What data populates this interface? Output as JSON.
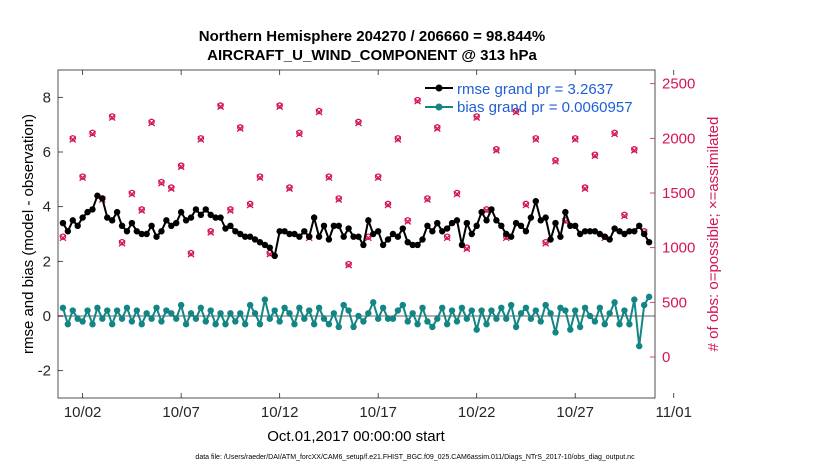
{
  "chart_data": {
    "type": "line",
    "title": "Northern Hemisphere 204270 / 206660 = 98.844%",
    "subtitle": "AIRCRAFT_U_WIND_COMPONENT @ 313 hPa",
    "xlabel": "Oct.01,2017 00:00:00 start",
    "ylabel": "rmse and bias (model - observation)",
    "y2label": "# of obs: o=possible; ×=assimilated",
    "footnote": "data file: /Users/raeder/DAI/ATM_forcXX/CAM6_setup/f.e21.FHIST_BGC.f09_025.CAM6assim.011/Diags_NTrS_2017-10/obs_diag_output.nc",
    "xlim": [
      0.75,
      31.05
    ],
    "ylim": [
      -3,
      9
    ],
    "y2lim": [
      -375,
      2625
    ],
    "x_tick_values": [
      2,
      7,
      12,
      17,
      22,
      27,
      32
    ],
    "x_tick_labels": [
      "10/02",
      "10/07",
      "10/12",
      "10/17",
      "10/22",
      "10/27",
      "11/01"
    ],
    "y_ticks": [
      -2,
      0,
      2,
      4,
      6,
      8
    ],
    "y2_ticks": [
      0,
      500,
      1000,
      1500,
      2000,
      2500
    ],
    "zero_line": 0,
    "legend": {
      "location": "top-right",
      "entries": [
        "rmse grand pr = 3.2637",
        "bias grand pr = 0.0060957"
      ]
    },
    "colors": {
      "rmse": "#000000",
      "bias": "#138585",
      "obs": "#d4145a",
      "zero": "#b0b0b0"
    },
    "series": [
      {
        "name": "rmse",
        "x": [
          1.0,
          1.25,
          1.5,
          1.75,
          2.0,
          2.25,
          2.5,
          2.75,
          3.0,
          3.25,
          3.5,
          3.75,
          4.0,
          4.25,
          4.5,
          4.75,
          5.0,
          5.25,
          5.5,
          5.75,
          6.0,
          6.25,
          6.5,
          6.75,
          7.0,
          7.25,
          7.5,
          7.75,
          8.0,
          8.25,
          8.5,
          8.75,
          9.0,
          9.25,
          9.5,
          9.75,
          10.0,
          10.25,
          10.5,
          10.75,
          11.0,
          11.25,
          11.5,
          11.75,
          12.0,
          12.25,
          12.5,
          12.75,
          13.0,
          13.25,
          13.5,
          13.75,
          14.0,
          14.25,
          14.5,
          14.75,
          15.0,
          15.25,
          15.5,
          15.75,
          16.0,
          16.25,
          16.5,
          16.75,
          17.0,
          17.25,
          17.5,
          17.75,
          18.0,
          18.25,
          18.5,
          18.75,
          19.0,
          19.25,
          19.5,
          19.75,
          20.0,
          20.25,
          20.5,
          20.75,
          21.0,
          21.25,
          21.5,
          21.75,
          22.0,
          22.25,
          22.5,
          22.75,
          23.0,
          23.25,
          23.5,
          23.75,
          24.0,
          24.25,
          24.5,
          24.75,
          25.0,
          25.25,
          25.5,
          25.75,
          26.0,
          26.25,
          26.5,
          26.75,
          27.0,
          27.25,
          27.5,
          27.75,
          28.0,
          28.25,
          28.5,
          28.75,
          29.0,
          29.25,
          29.5,
          29.75,
          30.0,
          30.25,
          30.5,
          30.75
        ],
        "values": [
          3.4,
          3.1,
          3.5,
          3.3,
          3.6,
          3.8,
          3.9,
          4.4,
          4.3,
          3.6,
          3.5,
          3.8,
          3.3,
          3.1,
          3.4,
          3.1,
          3.0,
          3.0,
          3.3,
          2.9,
          3.1,
          3.5,
          3.3,
          3.4,
          3.8,
          3.5,
          3.6,
          3.9,
          3.7,
          3.9,
          3.7,
          3.6,
          3.6,
          3.2,
          3.3,
          3.1,
          3.0,
          2.9,
          2.9,
          2.8,
          2.7,
          2.6,
          2.5,
          2.2,
          3.1,
          3.1,
          3.0,
          3.0,
          2.9,
          3.1,
          2.9,
          3.6,
          2.9,
          3.3,
          2.8,
          3.3,
          3.3,
          2.9,
          3.2,
          2.9,
          2.9,
          2.6,
          3.5,
          3.0,
          3.1,
          2.6,
          2.8,
          3.0,
          2.9,
          3.2,
          2.7,
          2.6,
          2.6,
          2.8,
          3.3,
          3.1,
          3.4,
          3.1,
          3.2,
          3.4,
          3.5,
          2.6,
          3.4,
          3.0,
          3.3,
          3.8,
          3.5,
          3.9,
          3.5,
          3.3,
          3.0,
          2.9,
          3.4,
          3.3,
          3.1,
          3.6,
          4.2,
          3.5,
          3.6,
          2.8,
          3.4,
          2.9,
          3.8,
          3.3,
          3.3,
          3.0,
          3.1,
          3.1,
          3.1,
          3.0,
          2.9,
          2.8,
          3.2,
          3.1,
          3.0,
          3.1,
          3.1,
          3.3,
          3.0,
          2.7
        ],
        "labels": [
          "rmse grand pr = 3.2637"
        ]
      },
      {
        "name": "bias",
        "x": [
          1.0,
          1.25,
          1.5,
          1.75,
          2.0,
          2.25,
          2.5,
          2.75,
          3.0,
          3.25,
          3.5,
          3.75,
          4.0,
          4.25,
          4.5,
          4.75,
          5.0,
          5.25,
          5.5,
          5.75,
          6.0,
          6.25,
          6.5,
          6.75,
          7.0,
          7.25,
          7.5,
          7.75,
          8.0,
          8.25,
          8.5,
          8.75,
          9.0,
          9.25,
          9.5,
          9.75,
          10.0,
          10.25,
          10.5,
          10.75,
          11.0,
          11.25,
          11.5,
          11.75,
          12.0,
          12.25,
          12.5,
          12.75,
          13.0,
          13.25,
          13.5,
          13.75,
          14.0,
          14.25,
          14.5,
          14.75,
          15.0,
          15.25,
          15.5,
          15.75,
          16.0,
          16.25,
          16.5,
          16.75,
          17.0,
          17.25,
          17.5,
          17.75,
          18.0,
          18.25,
          18.5,
          18.75,
          19.0,
          19.25,
          19.5,
          19.75,
          20.0,
          20.25,
          20.5,
          20.75,
          21.0,
          21.25,
          21.5,
          21.75,
          22.0,
          22.25,
          22.5,
          22.75,
          23.0,
          23.25,
          23.5,
          23.75,
          24.0,
          24.25,
          24.5,
          24.75,
          25.0,
          25.25,
          25.5,
          25.75,
          26.0,
          26.25,
          26.5,
          26.75,
          27.0,
          27.25,
          27.5,
          27.75,
          28.0,
          28.25,
          28.5,
          28.75,
          29.0,
          29.25,
          29.5,
          29.75,
          30.0,
          30.25,
          30.5,
          30.75
        ],
        "values": [
          0.3,
          -0.3,
          0.2,
          -0.1,
          -0.2,
          0.2,
          -0.3,
          0.3,
          -0.1,
          0.2,
          -0.3,
          0.2,
          -0.1,
          0.3,
          -0.2,
          0.2,
          -0.3,
          0.1,
          -0.1,
          0.3,
          -0.2,
          0.2,
          0.1,
          -0.1,
          0.4,
          -0.3,
          0.1,
          -0.1,
          0.3,
          -0.2,
          0.2,
          -0.3,
          0.1,
          -0.3,
          0.1,
          -0.2,
          0.1,
          -0.3,
          0.4,
          0.1,
          -0.3,
          0.6,
          -0.1,
          0.2,
          -0.2,
          0.3,
          0.1,
          -0.3,
          0.3,
          -0.1,
          0.2,
          -0.3,
          0.3,
          -0.1,
          -0.3,
          0.1,
          -0.4,
          0.4,
          0.2,
          -0.4,
          0.0,
          -0.2,
          0.1,
          0.5,
          -0.1,
          0.3,
          -0.1,
          -0.1,
          0.2,
          0.4,
          -0.2,
          0.1,
          -0.3,
          0.3,
          -0.2,
          -0.4,
          -0.1,
          0.3,
          -0.3,
          0.2,
          -0.2,
          0.3,
          -0.1,
          0.2,
          -0.5,
          0.2,
          -0.3,
          0.2,
          -0.1,
          0.3,
          -0.1,
          0.4,
          -0.4,
          0.1,
          0.3,
          -0.1,
          0.2,
          -0.2,
          0.4,
          0.1,
          -0.6,
          0.3,
          0.2,
          -0.5,
          0.2,
          -0.4,
          0.3,
          0.0,
          -0.2,
          0.3,
          -0.3,
          0.1,
          0.5,
          -0.3,
          0.2,
          -0.3,
          0.6,
          -1.1,
          0.4,
          0.7
        ],
        "labels": [
          "bias grand pr = 0.0060957"
        ]
      }
    ],
    "obs_possible": {
      "x": [
        1.0,
        1.5,
        2.0,
        2.5,
        3.0,
        3.5,
        4.0,
        4.5,
        5.0,
        5.5,
        6.0,
        6.5,
        7.0,
        7.5,
        8.0,
        8.5,
        9.0,
        9.5,
        10.0,
        10.5,
        11.0,
        11.5,
        12.0,
        12.5,
        13.0,
        13.5,
        14.0,
        14.5,
        15.0,
        15.5,
        16.0,
        16.5,
        17.0,
        17.5,
        18.0,
        18.5,
        19.0,
        19.5,
        20.0,
        20.5,
        21.0,
        21.5,
        22.0,
        22.5,
        23.0,
        23.5,
        24.0,
        24.5,
        25.0,
        25.5,
        26.0,
        26.5,
        27.0,
        27.5,
        28.0,
        28.5,
        29.0,
        29.5,
        30.0,
        30.5
      ],
      "values": [
        1100,
        2000,
        1650,
        2050,
        1450,
        2200,
        1050,
        1500,
        1350,
        2150,
        1600,
        1550,
        1750,
        950,
        2000,
        1150,
        2300,
        1350,
        2100,
        1400,
        1650,
        950,
        2300,
        1550,
        2050,
        1100,
        2250,
        1650,
        1450,
        850,
        2150,
        1100,
        1650,
        1400,
        2000,
        1250,
        2350,
        1450,
        2100,
        1100,
        1500,
        1000,
        2200,
        1350,
        1900,
        1100,
        2250,
        1400,
        2000,
        1050,
        1800,
        1250,
        2000,
        1550,
        1850,
        1100,
        2050,
        1300,
        1900,
        1150
      ]
    },
    "obs_assimilated": {
      "x": [
        1.0,
        1.5,
        2.0,
        2.5,
        3.0,
        3.5,
        4.0,
        4.5,
        5.0,
        5.5,
        6.0,
        6.5,
        7.0,
        7.5,
        8.0,
        8.5,
        9.0,
        9.5,
        10.0,
        10.5,
        11.0,
        11.5,
        12.0,
        12.5,
        13.0,
        13.5,
        14.0,
        14.5,
        15.0,
        15.5,
        16.0,
        16.5,
        17.0,
        17.5,
        18.0,
        18.5,
        19.0,
        19.5,
        20.0,
        20.5,
        21.0,
        21.5,
        22.0,
        22.5,
        23.0,
        23.5,
        24.0,
        24.5,
        25.0,
        25.5,
        26.0,
        26.5,
        27.0,
        27.5,
        28.0,
        28.5,
        29.0,
        29.5,
        30.0,
        30.5
      ],
      "values": [
        1090,
        1990,
        1640,
        2040,
        1440,
        2190,
        1040,
        1490,
        1340,
        2140,
        1590,
        1540,
        1740,
        940,
        1990,
        1140,
        2290,
        1340,
        2090,
        1390,
        1640,
        940,
        2290,
        1540,
        2040,
        1090,
        2240,
        1640,
        1440,
        840,
        2140,
        1090,
        1640,
        1390,
        1990,
        1240,
        2340,
        1440,
        2090,
        1090,
        1490,
        990,
        2190,
        1340,
        1890,
        1090,
        2240,
        1390,
        1990,
        1040,
        1790,
        1240,
        1990,
        1540,
        1840,
        1090,
        2040,
        1290,
        1890,
        1140
      ]
    }
  }
}
